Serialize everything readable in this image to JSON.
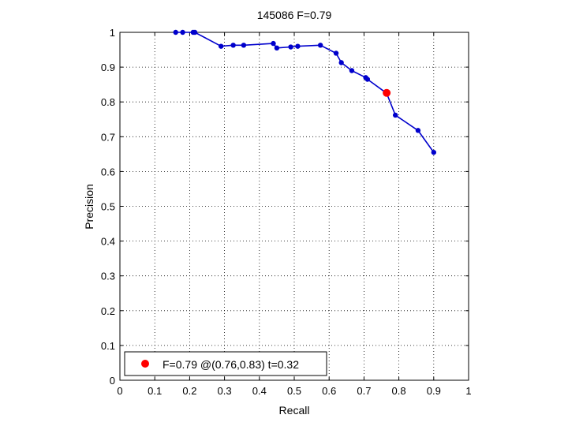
{
  "chart_data": {
    "type": "line",
    "title": "145086 F=0.79",
    "xlabel": "Recall",
    "ylabel": "Precision",
    "xlim": [
      0,
      1
    ],
    "ylim": [
      0,
      1
    ],
    "xticks": [
      "0",
      "0.1",
      "0.2",
      "0.3",
      "0.4",
      "0.5",
      "0.6",
      "0.7",
      "0.8",
      "0.9",
      "1"
    ],
    "yticks": [
      "0",
      "0.1",
      "0.2",
      "0.3",
      "0.4",
      "0.5",
      "0.6",
      "0.7",
      "0.8",
      "0.9",
      "1"
    ],
    "grid": true,
    "legend_position": "bottom-left",
    "series": [
      {
        "color": "#0000cc",
        "x": [
          0.16,
          0.18,
          0.21,
          0.215,
          0.29,
          0.325,
          0.355,
          0.44,
          0.45,
          0.49,
          0.51,
          0.575,
          0.62,
          0.635,
          0.665,
          0.705,
          0.71,
          0.765,
          0.79,
          0.855,
          0.9
        ],
        "y": [
          1.0,
          1.0,
          1.0,
          1.0,
          0.96,
          0.963,
          0.963,
          0.968,
          0.955,
          0.958,
          0.96,
          0.963,
          0.94,
          0.913,
          0.89,
          0.87,
          0.865,
          0.825,
          0.762,
          0.718,
          0.655
        ]
      }
    ],
    "highlight": {
      "x": 0.765,
      "y": 0.826,
      "color": "#ff0000",
      "label": "F=0.79 @(0.76,0.83) t=0.32"
    }
  }
}
